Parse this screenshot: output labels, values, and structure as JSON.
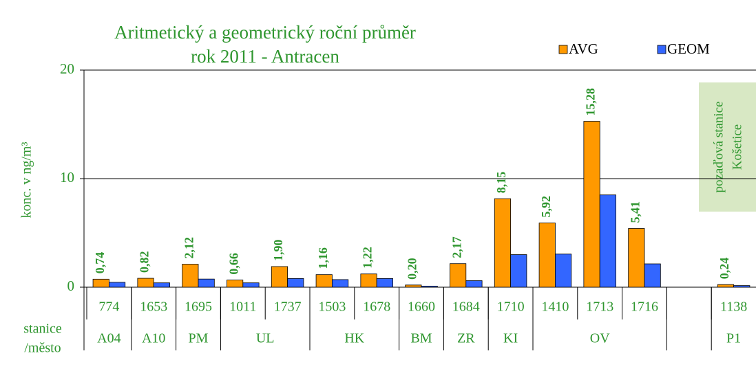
{
  "chart_data": {
    "type": "bar",
    "title": "Aritmetický a geometrický roční průměr",
    "subtitle": "rok 2011 - Antracen",
    "ylabel": "konc. v ng/m³",
    "xlabel_lines": [
      "stanice",
      "/město"
    ],
    "annotations": [
      "pozaďová stanice",
      "Košetice"
    ],
    "categories": [
      "774",
      "1653",
      "1695",
      "1011",
      "1737",
      "1503",
      "1678",
      "1660",
      "1684",
      "1710",
      "1410",
      "1713",
      "1716",
      null,
      "1138"
    ],
    "groups": [
      {
        "label": "A04",
        "count": 1
      },
      {
        "label": "A10",
        "count": 1
      },
      {
        "label": "PM",
        "count": 1
      },
      {
        "label": "UL",
        "count": 2
      },
      {
        "label": "HK",
        "count": 2
      },
      {
        "label": "BM",
        "count": 1
      },
      {
        "label": "ZR",
        "count": 1
      },
      {
        "label": "KI",
        "count": 1
      },
      {
        "label": "OV",
        "count": 3
      },
      {
        "label": null,
        "count": 1
      },
      {
        "label": "P1",
        "count": 1
      }
    ],
    "series": [
      {
        "name": "AVG",
        "color": "#ff9900",
        "values": [
          0.74,
          0.82,
          2.12,
          0.66,
          1.9,
          1.16,
          1.22,
          0.2,
          2.17,
          8.15,
          5.92,
          15.28,
          5.41,
          null,
          0.24
        ],
        "value_labels": [
          "0,74",
          "0,82",
          "2,12",
          "0,66",
          "1,90",
          "1,16",
          "1,22",
          "0,20",
          "2,17",
          "8,15",
          "5,92",
          "15,28",
          "5,41",
          null,
          "0,24"
        ]
      },
      {
        "name": "GEOM",
        "color": "#3366ff",
        "values": [
          0.45,
          0.4,
          0.75,
          0.4,
          0.8,
          0.7,
          0.8,
          0.1,
          0.6,
          3.0,
          3.05,
          8.5,
          2.15,
          null,
          0.15
        ]
      }
    ],
    "ylim": [
      0,
      20
    ],
    "yticks": [
      0,
      10,
      20
    ],
    "grid": true,
    "legend": "upper right"
  }
}
